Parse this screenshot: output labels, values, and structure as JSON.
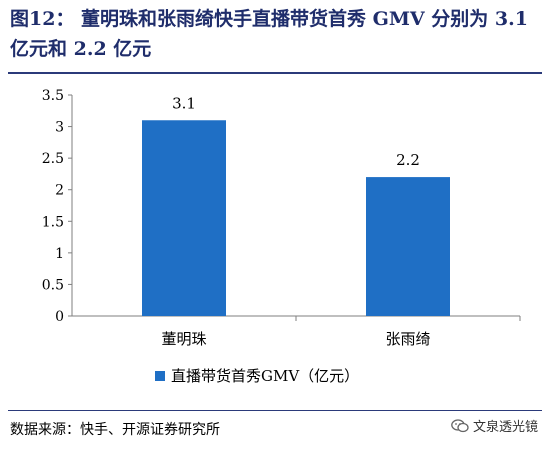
{
  "title": "图12：  董明珠和张雨绮快手直播带货首秀 GMV 分别为 3.1 亿元和 2.2 亿元",
  "chart_data": {
    "type": "bar",
    "categories": [
      "董明珠",
      "张雨绮"
    ],
    "series": [
      {
        "name": "直播带货首秀GMV（亿元）",
        "values": [
          3.1,
          2.2
        ]
      }
    ],
    "data_labels": [
      "3.1",
      "2.2"
    ],
    "ylim": [
      0,
      3.5
    ],
    "yticks": [
      "0",
      "0.5",
      "1",
      "1.5",
      "2",
      "2.5",
      "3",
      "3.5"
    ],
    "ytick_values": [
      0,
      0.5,
      1,
      1.5,
      2,
      2.5,
      3,
      3.5
    ],
    "legend_position": "bottom",
    "grid": false,
    "bar_color": "#1f6fc5"
  },
  "source": "数据来源：快手、开源证券研究所",
  "watermark": "文泉透光镜",
  "watermark_icon": "wechat-icon"
}
